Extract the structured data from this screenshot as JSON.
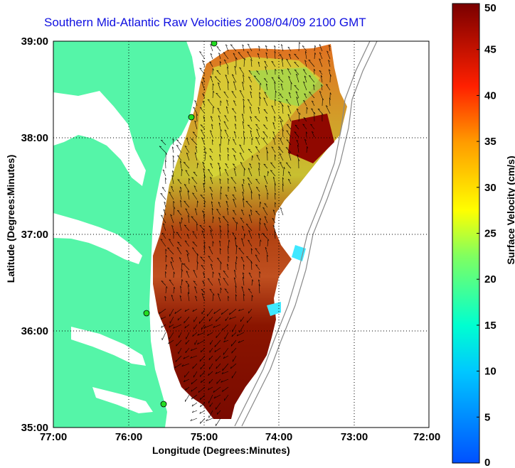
{
  "title": "Southern Mid-Atlantic Raw Velocities 2008/04/09 2100 GMT",
  "xlabel": "Longitude (Degrees:Minutes)",
  "ylabel": "Latitude (Degrees:Minutes)",
  "colorbar": {
    "label": "Surface Velocity (cm/s)",
    "range": [
      0,
      50
    ],
    "ticks": [
      "50",
      "45",
      "40",
      "35",
      "30",
      "25",
      "20",
      "15",
      "10",
      "5",
      "0"
    ]
  },
  "x_ticks": [
    "77:00",
    "76:00",
    "75:00",
    "74:00",
    "73:00",
    "72:00"
  ],
  "y_ticks": [
    "39:00",
    "38:00",
    "37:00",
    "36:00",
    "35:00"
  ],
  "colors": {
    "land": "#55f5a8",
    "title": "#1010e0",
    "marker": "#22dd22"
  }
}
